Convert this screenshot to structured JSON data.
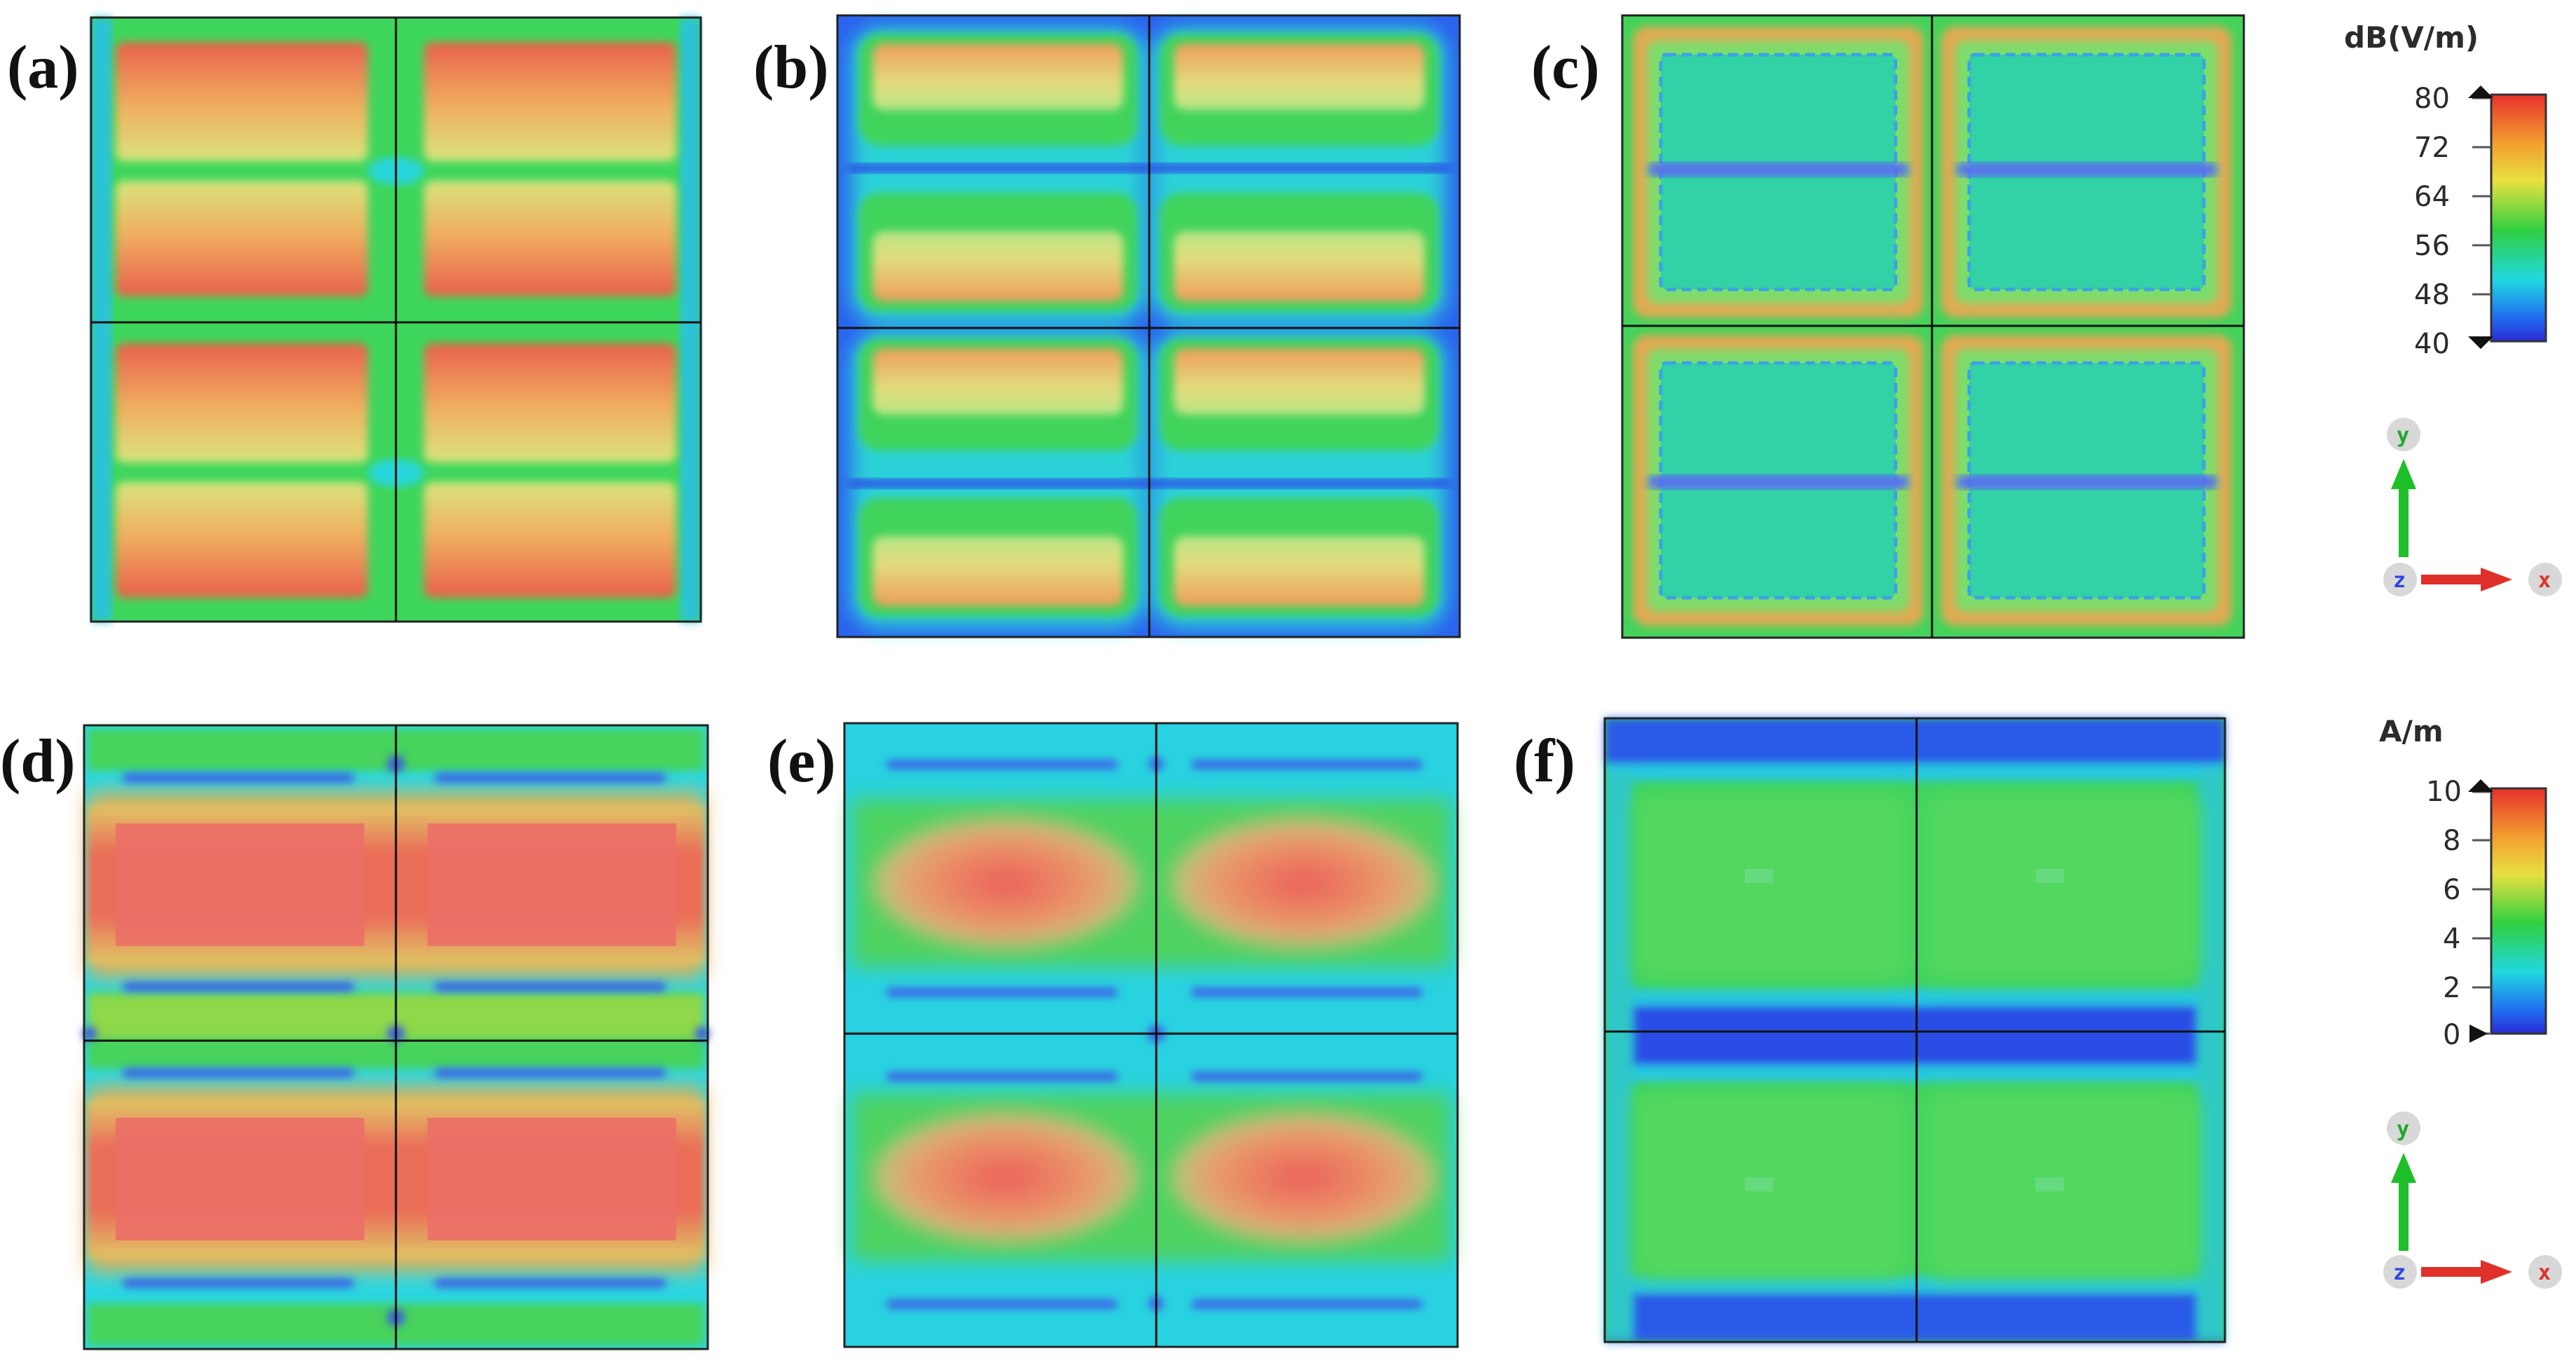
{
  "panels": [
    {
      "label": "(a)",
      "pattern": "e-rows"
    },
    {
      "label": "(b)",
      "pattern": "e-rows-blue-edges"
    },
    {
      "label": "(c)",
      "pattern": "e-frames"
    },
    {
      "label": "(d)",
      "pattern": "h-strong"
    },
    {
      "label": "(e)",
      "pattern": "h-medium"
    },
    {
      "label": "(f)",
      "pattern": "h-weak"
    }
  ],
  "colorbars": [
    {
      "unit": "dB(V/m)",
      "ticks": [
        "80",
        "72",
        "64",
        "56",
        "48",
        "40"
      ]
    },
    {
      "unit": "A/m",
      "ticks": [
        "10",
        "8",
        "6",
        "4",
        "2",
        "0"
      ]
    }
  ],
  "axes_triad": {
    "y": "y",
    "x": "x",
    "z": "z"
  },
  "colors": {
    "red": "#e8584a",
    "orange": "#f2a34a",
    "yellow": "#d8e37a",
    "green": "#34cf5a",
    "cyan": "#27d6dc",
    "blue": "#2a6bf0",
    "deep_blue": "#2b3fe0",
    "arrow_green": "#1fbf2a",
    "arrow_red": "#e0302a",
    "z_blue": "#2d43e6"
  }
}
